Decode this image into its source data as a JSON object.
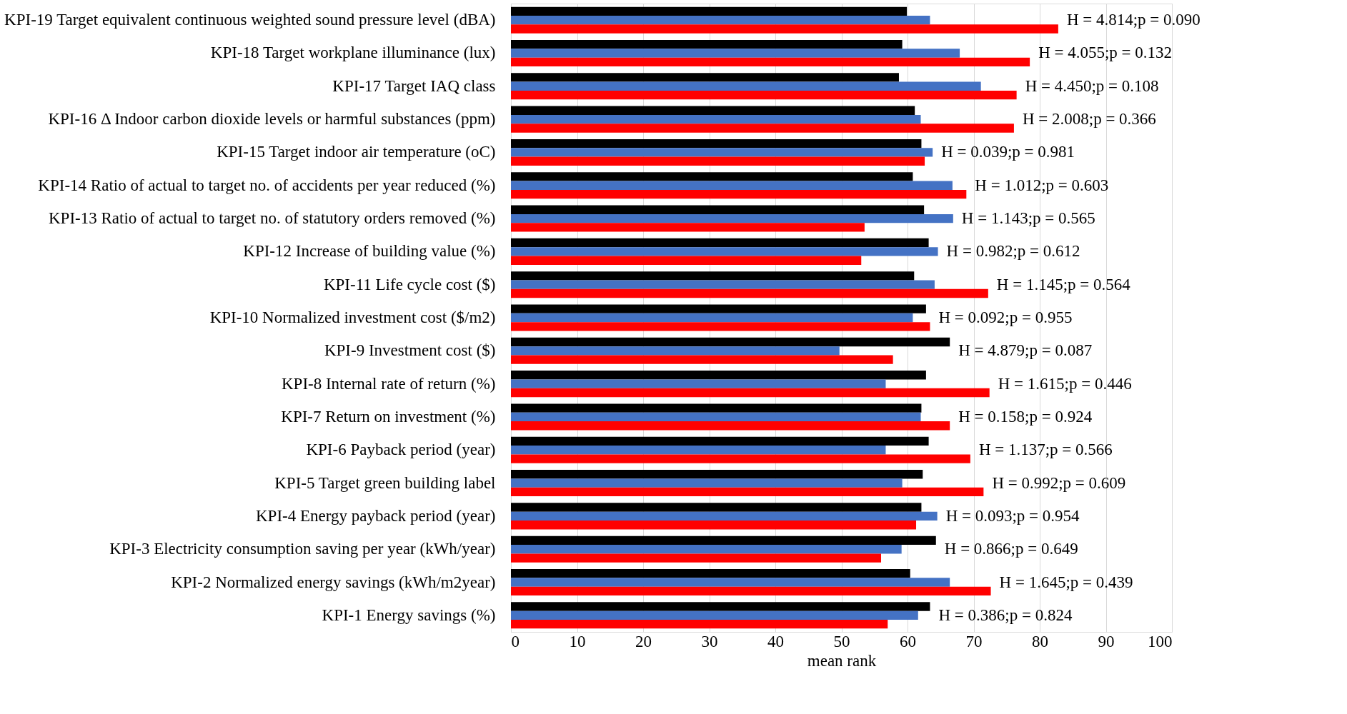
{
  "chart_data": {
    "type": "bar",
    "orientation": "horizontal",
    "xlabel": "mean rank",
    "categories": [
      "KPI-19 Target equivalent continuous weighted sound pressure level (dBA)",
      "KPI-18 Target workplane illuminance (lux)",
      "KPI-17 Target IAQ class",
      "KPI-16 Δ Indoor carbon dioxide levels or harmful substances (ppm)",
      "KPI-15 Target indoor air temperature (oC)",
      "KPI-14 Ratio of actual to target no. of accidents per year reduced (%)",
      "KPI-13 Ratio of actual to target no. of statutory orders removed (%)",
      "KPI-12 Increase of building value (%)",
      "KPI-11 Life cycle cost ($)",
      "KPI-10 Normalized investment cost ($/m2)",
      "KPI-9 Investment cost ($)",
      "KPI-8 Internal rate of return (%)",
      "KPI-7 Return on investment (%)",
      "KPI-6 Payback period (year)",
      "KPI-5 Target green building label",
      "KPI-4 Energy payback period (year)",
      "KPI-3 Electricity consumption saving per year (kWh/year)",
      "KPI-2 Normalized energy savings (kWh/m2year)",
      "KPI-1 Energy savings (%)"
    ],
    "series": [
      {
        "color": "#000000",
        "values": [
          59.9,
          59.2,
          58.7,
          61.1,
          62.1,
          60.8,
          62.5,
          63.2,
          61.0,
          62.8,
          66.4,
          62.8,
          62.1,
          63.2,
          62.3,
          62.1,
          64.3,
          60.4,
          63.4
        ]
      },
      {
        "color": "#4472c4",
        "values": [
          63.4,
          67.9,
          71.1,
          62.0,
          63.8,
          66.8,
          66.9,
          64.6,
          64.1,
          60.8,
          49.7,
          56.7,
          62.0,
          56.7,
          59.2,
          64.5,
          59.1,
          66.4,
          61.6
        ]
      },
      {
        "color": "#ff0000",
        "values": [
          82.8,
          78.5,
          76.5,
          76.1,
          62.6,
          68.9,
          53.5,
          53.0,
          72.2,
          63.4,
          57.8,
          72.4,
          66.4,
          69.5,
          71.5,
          61.3,
          56.0,
          72.6,
          57.0
        ]
      }
    ],
    "xlim": [
      0,
      100
    ],
    "xticks": [
      0,
      10,
      20,
      30,
      40,
      50,
      60,
      70,
      80,
      90,
      100
    ],
    "grid": "x",
    "legend": false,
    "annotations": [
      "H = 4.814;p = 0.090",
      "H = 4.055;p = 0.132",
      "H = 4.450;p = 0.108",
      "H = 2.008;p = 0.366",
      "H = 0.039;p = 0.981",
      "H = 1.012;p = 0.603",
      "H = 1.143;p = 0.565",
      "H = 0.982;p = 0.612",
      "H = 1.145;p = 0.564",
      "H = 0.092;p = 0.955",
      "H = 4.879;p = 0.087",
      "H = 1.615;p = 0.446",
      "H = 0.158;p = 0.924",
      "H = 1.137;p = 0.566",
      "H = 0.992;p = 0.609",
      "H = 0.093;p = 0.954",
      "H = 0.866;p = 0.649",
      "H = 1.645;p = 0.439",
      "H = 0.386;p = 0.824"
    ]
  }
}
